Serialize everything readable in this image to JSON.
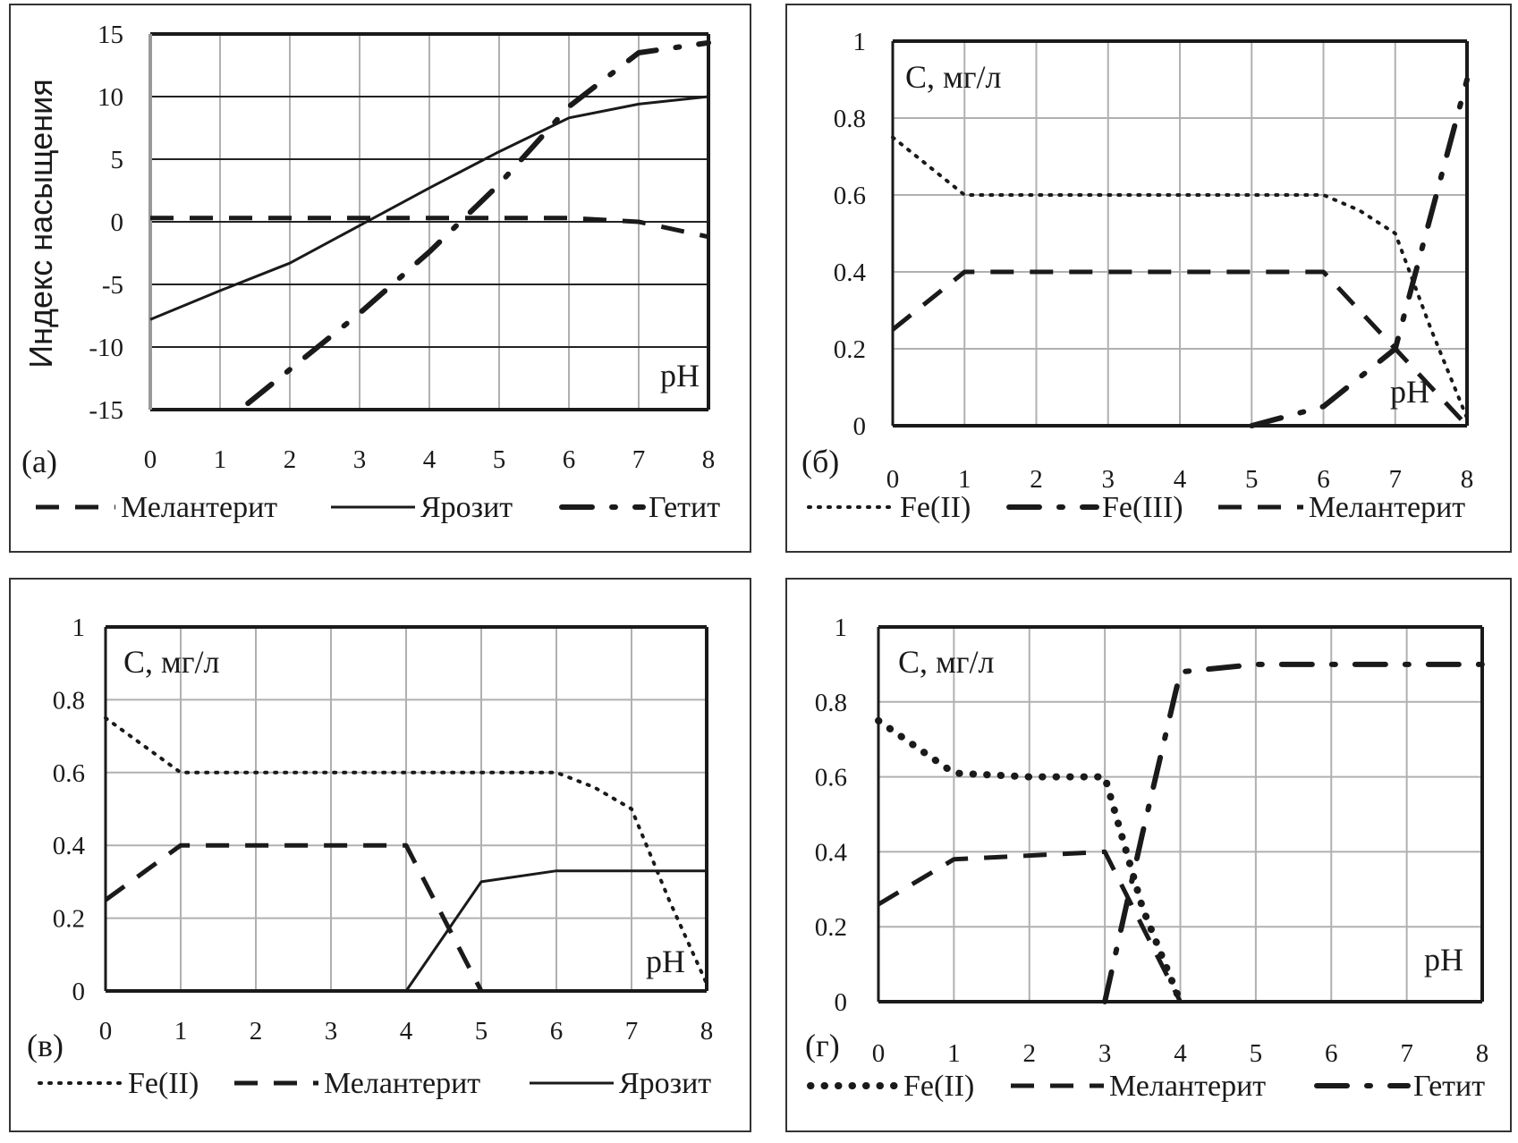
{
  "chart_data": [
    {
      "panel": "(а)",
      "type": "line",
      "ylabel": "Индекс насыщения",
      "xlabel": "pH",
      "title": "",
      "xlim": [
        0,
        8
      ],
      "ylim": [
        -15,
        15
      ],
      "xticks": [
        "0",
        "1",
        "2",
        "3",
        "4",
        "5",
        "6",
        "7",
        "8"
      ],
      "yticks": [
        "15",
        "10",
        "5",
        "0",
        "-5",
        "-10",
        "-15"
      ],
      "grid": true,
      "legend_position": "bottom",
      "series": [
        {
          "name": "Мелантерит",
          "style": "dashed",
          "x": [
            0,
            1,
            2,
            3,
            4,
            5,
            6,
            7,
            8
          ],
          "y": [
            0.3,
            0.3,
            0.3,
            0.3,
            0.3,
            0.3,
            0.3,
            0,
            -1.2
          ]
        },
        {
          "name": "Ярозит",
          "style": "solid",
          "x": [
            0,
            1,
            2,
            3,
            4,
            5,
            6,
            7,
            8
          ],
          "y": [
            -7.8,
            -5.5,
            -3.3,
            -0.3,
            2.7,
            5.6,
            8.3,
            9.4,
            10
          ]
        },
        {
          "name": "Гетит",
          "style": "dash-dot",
          "x": [
            1.4,
            2,
            3,
            4,
            5,
            6,
            7,
            8
          ],
          "y": [
            -14.5,
            -11.8,
            -7.3,
            -2.4,
            3,
            9.2,
            13.5,
            14.3
          ]
        }
      ]
    },
    {
      "panel": "(б)",
      "type": "line",
      "ylabel": "C, мг/л",
      "xlabel": "pH",
      "title": "",
      "xlim": [
        0,
        8
      ],
      "ylim": [
        0,
        1
      ],
      "xticks": [
        "0",
        "1",
        "2",
        "3",
        "4",
        "5",
        "6",
        "7",
        "8"
      ],
      "yticks": [
        "1",
        "0.8",
        "0.6",
        "0.4",
        "0.2",
        "0"
      ],
      "grid": true,
      "legend_position": "bottom",
      "series": [
        {
          "name": "Fe(II)",
          "style": "dotted",
          "x": [
            0,
            1,
            2,
            3,
            4,
            5,
            6,
            6.5,
            7,
            7.5,
            8
          ],
          "y": [
            0.75,
            0.6,
            0.6,
            0.6,
            0.6,
            0.6,
            0.6,
            0.56,
            0.5,
            0.25,
            0.02
          ]
        },
        {
          "name": "Fe(III)",
          "style": "dash-dot",
          "x": [
            5,
            6,
            7,
            8
          ],
          "y": [
            0,
            0.05,
            0.2,
            0.9
          ]
        },
        {
          "name": "Мелантерит",
          "style": "dashed",
          "x": [
            0,
            1,
            2,
            3,
            4,
            5,
            6,
            7,
            8
          ],
          "y": [
            0.25,
            0.4,
            0.4,
            0.4,
            0.4,
            0.4,
            0.4,
            0.2,
            0
          ]
        }
      ]
    },
    {
      "panel": "(в)",
      "type": "line",
      "ylabel": "C, мг/л",
      "xlabel": "pH",
      "title": "",
      "xlim": [
        0,
        8
      ],
      "ylim": [
        0,
        1
      ],
      "xticks": [
        "0",
        "1",
        "2",
        "3",
        "4",
        "5",
        "6",
        "7",
        "8"
      ],
      "yticks": [
        "1",
        "0.8",
        "0.6",
        "0.4",
        "0.2",
        "0"
      ],
      "grid": true,
      "legend_position": "bottom",
      "series": [
        {
          "name": "Fe(II)",
          "style": "dotted",
          "x": [
            0,
            1,
            2,
            3,
            4,
            5,
            6,
            6.5,
            7,
            7.5,
            8
          ],
          "y": [
            0.75,
            0.6,
            0.6,
            0.6,
            0.6,
            0.6,
            0.6,
            0.56,
            0.5,
            0.25,
            0.02
          ]
        },
        {
          "name": "Мелантерит",
          "style": "dashed",
          "x": [
            0,
            1,
            2,
            3,
            4,
            5
          ],
          "y": [
            0.25,
            0.4,
            0.4,
            0.4,
            0.4,
            0
          ]
        },
        {
          "name": "Ярозит",
          "style": "solid",
          "x": [
            4,
            5,
            6,
            7,
            8
          ],
          "y": [
            0,
            0.3,
            0.33,
            0.33,
            0.33
          ]
        }
      ]
    },
    {
      "panel": "(г)",
      "type": "line",
      "ylabel": "C, мг/л",
      "xlabel": "pH",
      "title": "",
      "xlim": [
        0,
        8
      ],
      "ylim": [
        0,
        1
      ],
      "xticks": [
        "0",
        "1",
        "2",
        "3",
        "4",
        "5",
        "6",
        "7",
        "8"
      ],
      "yticks": [
        "1",
        "0.8",
        "0.6",
        "0.4",
        "0.2",
        "0"
      ],
      "grid": true,
      "legend_position": "bottom",
      "series": [
        {
          "name": "Fe(II)",
          "style": "dotted-heavy",
          "x": [
            0,
            1,
            2,
            3,
            3.5,
            4
          ],
          "y": [
            0.75,
            0.61,
            0.6,
            0.6,
            0.25,
            0
          ]
        },
        {
          "name": "Мелантерит",
          "style": "dashed",
          "x": [
            0,
            1,
            2,
            3,
            3.5,
            4
          ],
          "y": [
            0.26,
            0.38,
            0.39,
            0.4,
            0.2,
            0
          ]
        },
        {
          "name": "Гетит",
          "style": "dash-dot",
          "x": [
            3,
            3.5,
            4,
            5,
            6,
            7,
            8
          ],
          "y": [
            0,
            0.45,
            0.88,
            0.9,
            0.9,
            0.9,
            0.9
          ]
        }
      ]
    }
  ]
}
